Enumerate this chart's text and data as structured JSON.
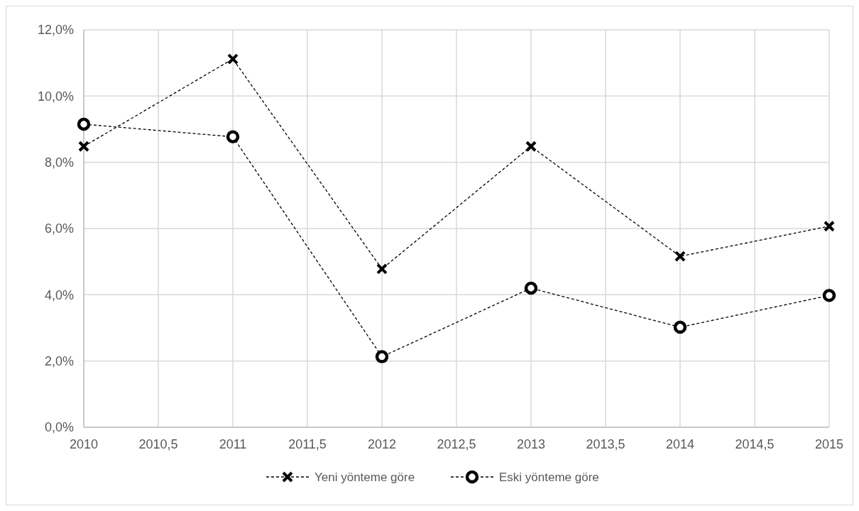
{
  "chart_data": {
    "type": "line",
    "x": [
      2010,
      2011,
      2012,
      2013,
      2014,
      2015
    ],
    "series": [
      {
        "name": "Yeni yönteme göre",
        "color": "#000000",
        "marker": "cross",
        "values": [
          8.48,
          11.12,
          4.78,
          8.48,
          5.16,
          6.07
        ]
      },
      {
        "name": "Eski yönteme göre",
        "color": "#000000",
        "marker": "circle",
        "values": [
          9.15,
          8.77,
          2.13,
          4.2,
          3.02,
          3.98
        ]
      }
    ],
    "xlim": [
      2010,
      2015
    ],
    "xticks": [
      2010,
      {
        "value": 2010.5,
        "label": "2010,5"
      },
      2011,
      {
        "value": 2011.5,
        "label": "2011,5"
      },
      2012,
      {
        "value": 2012.5,
        "label": "2012,5"
      },
      2013,
      {
        "value": 2013.5,
        "label": "2013,5"
      },
      2014,
      {
        "value": 2014.5,
        "label": "2014,5"
      },
      2015
    ],
    "ylim": [
      0,
      12
    ],
    "yticks": [
      {
        "value": 0,
        "label": "0,0%"
      },
      {
        "value": 2,
        "label": "2,0%"
      },
      {
        "value": 4,
        "label": "4,0%"
      },
      {
        "value": 6,
        "label": "6,0%"
      },
      {
        "value": 8,
        "label": "8,0%"
      },
      {
        "value": 10,
        "label": "10,0%"
      },
      {
        "value": 12,
        "label": "12,0%"
      }
    ],
    "grid": true,
    "legend": "bottom",
    "line_style": "dashed"
  }
}
